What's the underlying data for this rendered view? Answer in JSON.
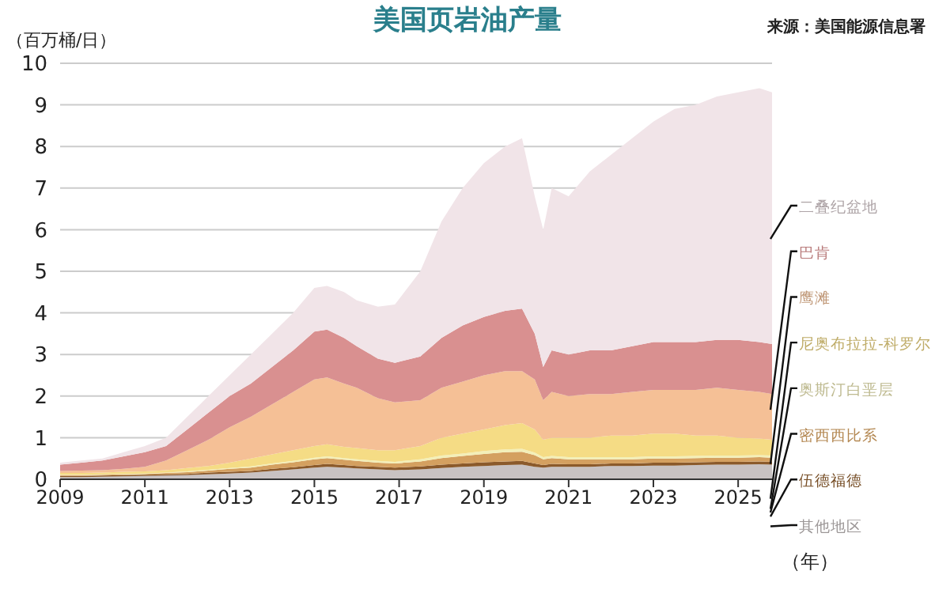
{
  "chart_data": {
    "type": "area",
    "stacked": true,
    "title": "美国页岩油产量",
    "ylabel": "（百万桶/日）",
    "xlabel": "（年）",
    "annotations": [
      "来源：美国能源信息署"
    ],
    "x": [
      2009,
      2009.5,
      2010,
      2010.5,
      2011,
      2011.5,
      2012,
      2012.5,
      2013,
      2013.5,
      2014,
      2014.5,
      2015,
      2015.3,
      2015.7,
      2016,
      2016.5,
      2016.9,
      2017.5,
      2018,
      2018.5,
      2019,
      2019.5,
      2019.9,
      2020.2,
      2020.4,
      2020.6,
      2021,
      2021.5,
      2022,
      2022.5,
      2023,
      2023.5,
      2024,
      2024.5,
      2025,
      2025.5,
      2025.8
    ],
    "xlim": [
      2009,
      2025.8
    ],
    "xticks": [
      2009,
      2011,
      2013,
      2015,
      2017,
      2019,
      2021,
      2023,
      2025
    ],
    "ylim": [
      0,
      10
    ],
    "yticks": [
      0,
      1,
      2,
      3,
      4,
      5,
      6,
      7,
      8,
      9,
      10
    ],
    "grid": "y",
    "series": [
      {
        "name": "其他地区",
        "color": "#c8c2c2",
        "values": [
          0.05,
          0.05,
          0.06,
          0.07,
          0.08,
          0.09,
          0.1,
          0.12,
          0.14,
          0.16,
          0.2,
          0.24,
          0.28,
          0.3,
          0.28,
          0.26,
          0.24,
          0.22,
          0.24,
          0.27,
          0.3,
          0.32,
          0.34,
          0.35,
          0.3,
          0.28,
          0.3,
          0.3,
          0.3,
          0.32,
          0.32,
          0.33,
          0.33,
          0.34,
          0.35,
          0.35,
          0.36,
          0.35
        ]
      },
      {
        "name": "伍德福德",
        "color": "#8b5a2b",
        "values": [
          0.03,
          0.03,
          0.03,
          0.03,
          0.03,
          0.03,
          0.03,
          0.04,
          0.04,
          0.04,
          0.05,
          0.05,
          0.06,
          0.07,
          0.06,
          0.06,
          0.06,
          0.06,
          0.07,
          0.08,
          0.08,
          0.09,
          0.09,
          0.09,
          0.08,
          0.06,
          0.07,
          0.06,
          0.06,
          0.06,
          0.06,
          0.07,
          0.07,
          0.07,
          0.07,
          0.07,
          0.07,
          0.07
        ]
      },
      {
        "name": "密西西比系",
        "color": "#d4a060",
        "values": [
          0.02,
          0.02,
          0.02,
          0.02,
          0.02,
          0.03,
          0.04,
          0.05,
          0.07,
          0.08,
          0.1,
          0.12,
          0.14,
          0.14,
          0.13,
          0.12,
          0.1,
          0.1,
          0.12,
          0.16,
          0.18,
          0.2,
          0.22,
          0.22,
          0.2,
          0.14,
          0.14,
          0.12,
          0.12,
          0.1,
          0.1,
          0.1,
          0.1,
          0.1,
          0.1,
          0.1,
          0.1,
          0.1
        ]
      },
      {
        "name": "奥斯汀白垩层",
        "color": "#f3efb8",
        "values": [
          0.01,
          0.01,
          0.01,
          0.01,
          0.01,
          0.01,
          0.02,
          0.02,
          0.02,
          0.03,
          0.03,
          0.03,
          0.04,
          0.04,
          0.04,
          0.04,
          0.04,
          0.04,
          0.05,
          0.06,
          0.06,
          0.07,
          0.07,
          0.07,
          0.06,
          0.05,
          0.05,
          0.05,
          0.05,
          0.05,
          0.05,
          0.05,
          0.05,
          0.05,
          0.05,
          0.05,
          0.05,
          0.05
        ]
      },
      {
        "name": "尼奥布拉拉-科罗尔",
        "color": "#f5dc85",
        "values": [
          0.04,
          0.04,
          0.04,
          0.05,
          0.05,
          0.06,
          0.08,
          0.09,
          0.13,
          0.19,
          0.22,
          0.26,
          0.28,
          0.29,
          0.27,
          0.27,
          0.26,
          0.28,
          0.32,
          0.43,
          0.48,
          0.52,
          0.58,
          0.62,
          0.56,
          0.42,
          0.44,
          0.47,
          0.47,
          0.52,
          0.52,
          0.55,
          0.55,
          0.49,
          0.48,
          0.43,
          0.4,
          0.38
        ]
      },
      {
        "name": "鹰滩",
        "color": "#f5c096",
        "values": [
          0.05,
          0.06,
          0.06,
          0.07,
          0.11,
          0.23,
          0.43,
          0.63,
          0.85,
          1.0,
          1.2,
          1.4,
          1.6,
          1.61,
          1.52,
          1.45,
          1.25,
          1.15,
          1.1,
          1.2,
          1.25,
          1.3,
          1.3,
          1.25,
          1.2,
          0.95,
          1.1,
          1.0,
          1.05,
          1.0,
          1.05,
          1.05,
          1.05,
          1.1,
          1.15,
          1.15,
          1.12,
          1.1
        ]
      },
      {
        "name": "巴肯",
        "color": "#d99090",
        "values": [
          0.15,
          0.19,
          0.23,
          0.3,
          0.35,
          0.35,
          0.5,
          0.65,
          0.75,
          0.8,
          0.9,
          1.0,
          1.15,
          1.15,
          1.1,
          1.0,
          0.95,
          0.95,
          1.05,
          1.2,
          1.35,
          1.4,
          1.45,
          1.5,
          1.1,
          0.8,
          1.0,
          1.0,
          1.05,
          1.05,
          1.1,
          1.15,
          1.15,
          1.15,
          1.15,
          1.2,
          1.2,
          1.2
        ]
      },
      {
        "name": "二叠纪盆地",
        "color": "#f1e4e8",
        "values": [
          0.05,
          0.05,
          0.05,
          0.1,
          0.15,
          0.2,
          0.3,
          0.4,
          0.5,
          0.7,
          0.8,
          0.9,
          1.05,
          1.05,
          1.1,
          1.1,
          1.25,
          1.4,
          2.05,
          2.8,
          3.3,
          3.7,
          3.95,
          4.1,
          3.3,
          3.3,
          3.9,
          3.8,
          4.3,
          4.7,
          5.0,
          5.3,
          5.6,
          5.7,
          5.85,
          5.95,
          6.1,
          6.05
        ]
      }
    ]
  }
}
